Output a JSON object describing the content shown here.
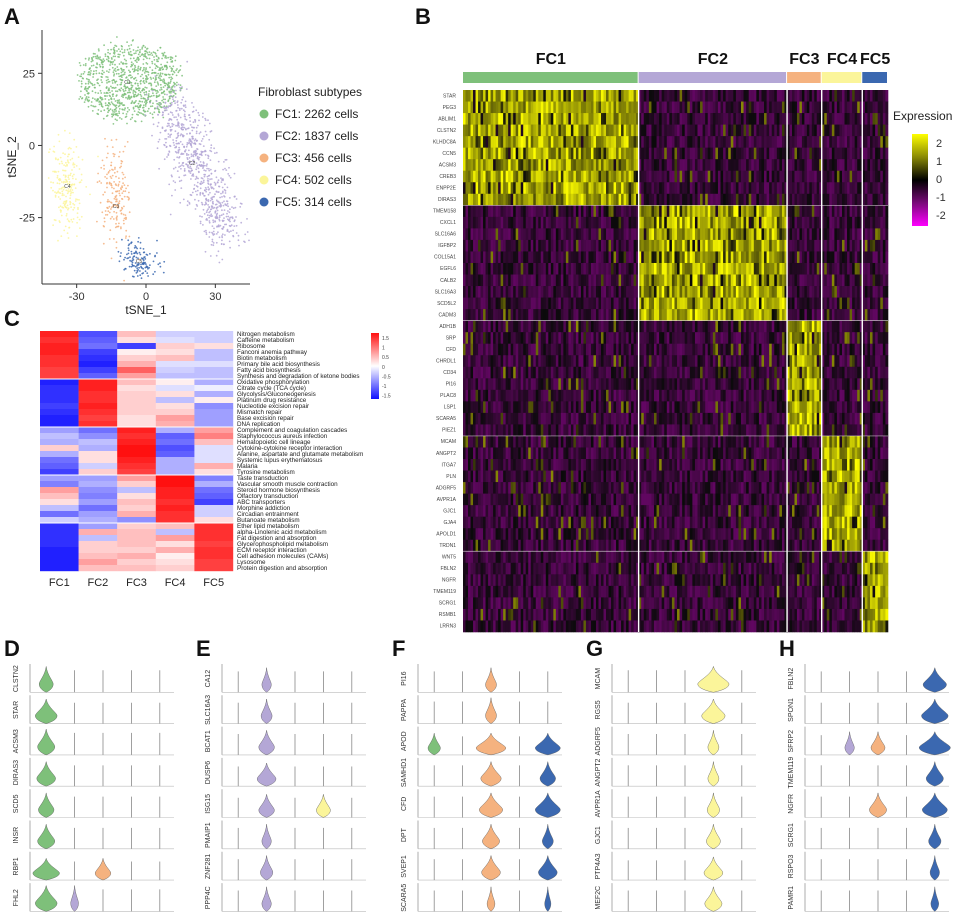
{
  "panels": {
    "A": "A",
    "B": "B",
    "C": "C",
    "D": "D",
    "E": "E",
    "F": "F",
    "G": "G",
    "H": "H"
  },
  "colors": {
    "FC1": "#7ec07a",
    "FC2": "#b4a7d6",
    "FC3": "#f5b27f",
    "FC4": "#fbf59a",
    "FC5": "#3b68b0"
  },
  "chart_data": [
    {
      "id": "A",
      "type": "scatter",
      "xlabel": "tSNE_1",
      "ylabel": "tSNE_2",
      "xticks": [
        -30,
        0,
        30
      ],
      "yticks": [
        -25,
        0,
        25
      ],
      "xlim": [
        -45,
        45
      ],
      "ylim": [
        -48,
        40
      ],
      "legend_title": "Fibroblast subtypes",
      "legend_placement": "right",
      "series": [
        {
          "name": "FC1: 2262 cells",
          "label": "C1",
          "center": [
            -8,
            22
          ],
          "count": 2262
        },
        {
          "name": "FC2: 1837 cells",
          "label": "C2",
          "center": [
            20,
            -6
          ],
          "count": 1837
        },
        {
          "name": "FC3: 456 cells",
          "label": "C3",
          "center": [
            -13,
            -21
          ],
          "count": 456
        },
        {
          "name": "FC4: 502 cells",
          "label": "C4",
          "center": [
            -34,
            -14
          ],
          "count": 502
        },
        {
          "name": "FC5: 314 cells",
          "label": "C5",
          "center": [
            -3,
            -40
          ],
          "count": 314
        }
      ]
    },
    {
      "id": "B",
      "type": "heatmap",
      "groups": [
        "FC1",
        "FC2",
        "FC3",
        "FC4",
        "FC5"
      ],
      "group_fractions": [
        0.355,
        0.3,
        0.07,
        0.082,
        0.052
      ],
      "genes": [
        "STAR",
        "PEG3",
        "ABLIM1",
        "CLSTN2",
        "KLHDC8A",
        "CCN5",
        "ACSM3",
        "CREB3",
        "ENPP2E",
        "DIRAS3",
        "TMEM158",
        "CXCL1",
        "SLC16A6",
        "IGFBP2",
        "COL15A1",
        "EGFL6",
        "CALB2",
        "SLC16A3",
        "SCD5L2",
        "CADM3",
        "ADH1B",
        "SRP",
        "CFD",
        "CHRDL1",
        "CD34",
        "PI16",
        "PLAC8",
        "LSP1",
        "SCARA5",
        "PIEZ1",
        "MCAM",
        "ANGPT2",
        "ITGA7",
        "PLN",
        "ADGRF5",
        "AVPR1A",
        "GJC1",
        "GJA4",
        "APOLD1",
        "TRDN1",
        "WNT5",
        "FBLN2",
        "NGFR",
        "TMEM119",
        "SCRG1",
        "RSMB1",
        "LRRN3"
      ],
      "legend_title": "Expression",
      "legend_ticks": [
        2,
        1,
        0,
        -1,
        -2
      ]
    },
    {
      "id": "C",
      "type": "heatmap",
      "columns": [
        "FC1",
        "FC2",
        "FC3",
        "FC4",
        "FC5"
      ],
      "rows": [
        {
          "name": "Nitrogen metabolism",
          "values": [
            1.4,
            -1.1,
            0.4,
            -0.3,
            -0.3
          ]
        },
        {
          "name": "Caffeine metabolism",
          "values": [
            1.3,
            -1.0,
            0.2,
            -0.2,
            -0.3
          ]
        },
        {
          "name": "Ribosome",
          "values": [
            1.4,
            -0.9,
            -1.2,
            0.3,
            0.2
          ]
        },
        {
          "name": "Fanconi anemia pathway",
          "values": [
            1.4,
            -1.2,
            0.1,
            0.2,
            -0.4
          ]
        },
        {
          "name": "Biotin metabolism",
          "values": [
            1.3,
            -1.3,
            0.3,
            0.4,
            -0.4
          ]
        },
        {
          "name": "Primary bile acid biosynthesis",
          "values": [
            1.3,
            -1.4,
            0.5,
            -0.2,
            -0.2
          ]
        },
        {
          "name": "Fatty acid biosynthesis",
          "values": [
            1.2,
            -1.2,
            1.0,
            -0.3,
            -0.4
          ]
        },
        {
          "name": "Synthesis and degradation of ketone bodies",
          "values": [
            1.2,
            -1.0,
            0.6,
            -0.4,
            -0.4
          ]
        },
        {
          "name": "Oxidative phosphorylation",
          "values": [
            -1.4,
            1.4,
            0.4,
            0.1,
            -0.5
          ]
        },
        {
          "name": "Citrate cycle (TCA cycle)",
          "values": [
            -1.3,
            1.4,
            0.2,
            -0.2,
            -0.1
          ]
        },
        {
          "name": "Glycolysis/Gluconeogenesis",
          "values": [
            -1.3,
            1.3,
            0.3,
            0.2,
            -0.5
          ]
        },
        {
          "name": "Platinum drug resistance",
          "values": [
            -1.3,
            1.3,
            0.3,
            -0.4,
            0.1
          ]
        },
        {
          "name": "Nucleotide excision repair",
          "values": [
            -1.2,
            1.4,
            0.3,
            0.2,
            -0.7
          ]
        },
        {
          "name": "Mismatch repair",
          "values": [
            -1.3,
            1.3,
            0.3,
            0.3,
            -0.6
          ]
        },
        {
          "name": "Base excision repair",
          "values": [
            -1.4,
            1.2,
            0.2,
            0.6,
            -0.6
          ]
        },
        {
          "name": "DNA replication",
          "values": [
            -1.4,
            1.3,
            0.2,
            0.5,
            -0.6
          ]
        },
        {
          "name": "Complement and coagulation cascades",
          "values": [
            -0.6,
            -0.9,
            1.4,
            -0.5,
            0.6
          ]
        },
        {
          "name": "Staphylococcus aureus infection",
          "values": [
            -0.4,
            -0.7,
            1.3,
            -1.0,
            0.8
          ]
        },
        {
          "name": "Hematopoietic cell lineage",
          "values": [
            -0.5,
            -0.4,
            1.4,
            -0.9,
            0.4
          ]
        },
        {
          "name": "Cytokine-cytokine receptor interaction",
          "values": [
            0.3,
            -0.5,
            1.5,
            -1.1,
            -0.2
          ]
        },
        {
          "name": "Alanine, aspartate and glutamate metabolism",
          "values": [
            -0.5,
            0.2,
            1.5,
            -1.0,
            -0.2
          ]
        },
        {
          "name": "Systemic lupus erythematosus",
          "values": [
            -0.9,
            0.2,
            1.4,
            -0.5,
            -0.2
          ]
        },
        {
          "name": "Malaria",
          "values": [
            -1.0,
            -0.3,
            1.3,
            -0.5,
            0.5
          ]
        },
        {
          "name": "Tyrosine metabolism",
          "values": [
            -1.2,
            0.3,
            1.2,
            -0.5,
            0.2
          ]
        },
        {
          "name": "Taste transduction",
          "values": [
            -0.6,
            -0.6,
            0.6,
            1.5,
            -0.8
          ]
        },
        {
          "name": "Vascular smooth muscle contraction",
          "values": [
            -0.8,
            -0.5,
            0.3,
            1.5,
            -0.5
          ]
        },
        {
          "name": "Steroid hormone biosynthesis",
          "values": [
            0.6,
            -0.7,
            -0.4,
            1.4,
            -0.9
          ]
        },
        {
          "name": "Olfactory transduction",
          "values": [
            0.4,
            -0.8,
            0.2,
            1.4,
            -1.0
          ]
        },
        {
          "name": "ABC transporters",
          "values": [
            0.2,
            -0.6,
            0.4,
            1.3,
            -1.2
          ]
        },
        {
          "name": "Morphine addiction",
          "values": [
            -0.4,
            -0.9,
            0.3,
            1.4,
            -0.3
          ]
        },
        {
          "name": "Circadian entrainment",
          "values": [
            -0.9,
            -0.6,
            0.5,
            1.3,
            -0.3
          ]
        },
        {
          "name": "Butanoate metabolism",
          "values": [
            -0.3,
            -0.5,
            -0.7,
            1.3,
            0.2
          ]
        },
        {
          "name": "Ether lipid metabolism",
          "values": [
            -1.3,
            -0.6,
            0.3,
            0.4,
            1.3
          ]
        },
        {
          "name": "alpha-Linolenic acid metabolism",
          "values": [
            -1.3,
            0.5,
            0.4,
            -0.4,
            1.3
          ]
        },
        {
          "name": "Fat digestion and absorption",
          "values": [
            -1.3,
            -0.4,
            0.4,
            0.6,
            1.3
          ]
        },
        {
          "name": "Glycerophospholipid metabolism",
          "values": [
            -1.3,
            0.3,
            0.4,
            0.2,
            1.2
          ]
        },
        {
          "name": "ECM receptor interaction",
          "values": [
            -1.4,
            0.3,
            0.3,
            0.5,
            1.3
          ]
        },
        {
          "name": "Cell adhesion molecules (CAMs)",
          "values": [
            -1.4,
            0.4,
            0.5,
            0.1,
            1.3
          ]
        },
        {
          "name": "Lysosome",
          "values": [
            -1.4,
            0.6,
            0.3,
            0.2,
            1.2
          ]
        },
        {
          "name": "Protein digestion and absorption",
          "values": [
            -1.4,
            0.4,
            0.4,
            0.3,
            1.2
          ]
        }
      ],
      "legend_ticks": [
        1.5,
        1,
        0.5,
        0,
        -0.5,
        -1,
        -1.5
      ]
    },
    {
      "id": "D",
      "type": "violin",
      "bold_group": "FC1",
      "groups": [
        "FC1",
        "FC2",
        "FC3",
        "FC4",
        "FC5"
      ],
      "genes": [
        "CLSTN2",
        "STAR",
        "ACSM3",
        "DIRAS3",
        "SCD5",
        "INSR",
        "RBP1",
        "FHL2"
      ],
      "widths": [
        [
          0.45,
          0.02,
          0.02,
          0.02,
          0.02
        ],
        [
          0.7,
          0.03,
          0.02,
          0.02,
          0.02
        ],
        [
          0.55,
          0.03,
          0.02,
          0.02,
          0.02
        ],
        [
          0.6,
          0.02,
          0.02,
          0.02,
          0.02
        ],
        [
          0.5,
          0.03,
          0.03,
          0.02,
          0.02
        ],
        [
          0.55,
          0.03,
          0.02,
          0.02,
          0.02
        ],
        [
          0.85,
          0.05,
          0.5,
          0.02,
          0.03
        ],
        [
          0.7,
          0.25,
          0.05,
          0.02,
          0.03
        ]
      ],
      "heights": [
        0.95,
        0.9,
        0.95,
        0.9,
        0.9,
        0.9,
        0.8,
        0.95
      ]
    },
    {
      "id": "E",
      "type": "violin",
      "bold_group": "FC2",
      "groups": [
        "FC1",
        "FC2",
        "FC3",
        "FC4",
        "FC5"
      ],
      "genes": [
        "CA12",
        "SLC16A3",
        "BCAT1",
        "DUSP6",
        "ISG15",
        "PMAIP1",
        "ZNF281",
        "PPP4C"
      ],
      "widths": [
        [
          0.02,
          0.3,
          0.02,
          0.02,
          0.02
        ],
        [
          0.02,
          0.35,
          0.02,
          0.02,
          0.02
        ],
        [
          0.02,
          0.5,
          0.02,
          0.02,
          0.02
        ],
        [
          0.02,
          0.6,
          0.02,
          0.02,
          0.02
        ],
        [
          0.02,
          0.5,
          0.02,
          0.45,
          0.02
        ],
        [
          0.02,
          0.3,
          0.02,
          0.02,
          0.02
        ],
        [
          0.02,
          0.4,
          0.02,
          0.02,
          0.02
        ],
        [
          0.02,
          0.3,
          0.02,
          0.02,
          0.02
        ]
      ],
      "heights": [
        0.9,
        0.9,
        0.9,
        0.85,
        0.85,
        0.9,
        0.9,
        0.9
      ]
    },
    {
      "id": "F",
      "type": "violin",
      "bold_group": "FC3",
      "groups": [
        "FC1",
        "FC2",
        "FC3",
        "FC4",
        "FC5"
      ],
      "genes": [
        "PI16",
        "PAPPA",
        "APOD",
        "SAMHD1",
        "CFD",
        "DPT",
        "SVEP1",
        "SCARA5"
      ],
      "widths": [
        [
          0.02,
          0.02,
          0.35,
          0.02,
          0.03
        ],
        [
          0.02,
          0.02,
          0.35,
          0.02,
          0.03
        ],
        [
          0.4,
          0.02,
          0.95,
          0.03,
          0.8
        ],
        [
          0.02,
          0.02,
          0.65,
          0.02,
          0.5
        ],
        [
          0.03,
          0.02,
          0.75,
          0.02,
          0.8
        ],
        [
          0.02,
          0.02,
          0.55,
          0.02,
          0.35
        ],
        [
          0.02,
          0.02,
          0.6,
          0.02,
          0.6
        ],
        [
          0.02,
          0.02,
          0.25,
          0.02,
          0.2
        ]
      ],
      "heights": [
        0.9,
        0.95,
        0.8,
        0.9,
        0.9,
        0.9,
        0.9,
        0.9
      ]
    },
    {
      "id": "G",
      "type": "violin",
      "bold_group": "FC4",
      "groups": [
        "FC1",
        "FC2",
        "FC3",
        "FC4",
        "FC5"
      ],
      "genes": [
        "MCAM",
        "RGS5",
        "ADGRF5",
        "ANGPT2",
        "AVPR1A",
        "GJC1",
        "PTP4A3",
        "MEF2C"
      ],
      "widths": [
        [
          0.02,
          0.02,
          0.02,
          1.0,
          0.02
        ],
        [
          0.02,
          0.02,
          0.02,
          0.75,
          0.02
        ],
        [
          0.02,
          0.02,
          0.02,
          0.35,
          0.02
        ],
        [
          0.02,
          0.02,
          0.02,
          0.35,
          0.02
        ],
        [
          0.02,
          0.02,
          0.02,
          0.4,
          0.02
        ],
        [
          0.02,
          0.02,
          0.02,
          0.45,
          0.02
        ],
        [
          0.02,
          0.02,
          0.02,
          0.6,
          0.02
        ],
        [
          0.02,
          0.02,
          0.02,
          0.55,
          0.02
        ]
      ],
      "heights": [
        0.95,
        0.9,
        0.9,
        0.9,
        0.9,
        0.9,
        0.85,
        0.9
      ]
    },
    {
      "id": "H",
      "type": "violin",
      "bold_group": "FC5",
      "groups": [
        "FC1",
        "FC2",
        "FC3",
        "FC4",
        "FC5"
      ],
      "genes": [
        "FBLN2",
        "SPON1",
        "SFRP2",
        "TMEM119",
        "NGFR",
        "SCRG1",
        "RSPO3",
        "PAMR1"
      ],
      "widths": [
        [
          0.02,
          0.02,
          0.02,
          0.02,
          0.75
        ],
        [
          0.02,
          0.02,
          0.02,
          0.02,
          0.85
        ],
        [
          0.02,
          0.3,
          0.45,
          0.02,
          1.0
        ],
        [
          0.02,
          0.02,
          0.02,
          0.02,
          0.55
        ],
        [
          0.02,
          0.02,
          0.55,
          0.02,
          0.8
        ],
        [
          0.02,
          0.02,
          0.02,
          0.02,
          0.4
        ],
        [
          0.02,
          0.02,
          0.02,
          0.02,
          0.3
        ],
        [
          0.02,
          0.02,
          0.02,
          0.02,
          0.25
        ]
      ],
      "heights": [
        0.9,
        0.9,
        0.85,
        0.9,
        0.9,
        0.9,
        0.9,
        0.9
      ]
    }
  ]
}
